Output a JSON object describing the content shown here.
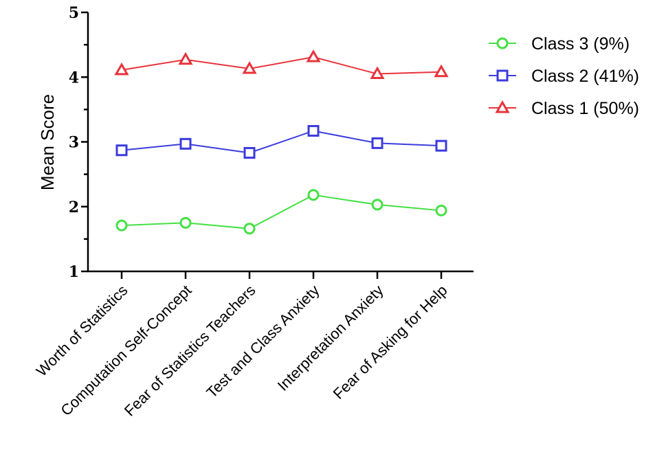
{
  "chart_data": {
    "type": "line",
    "categories": [
      "Worth of Statistics",
      "Computation Self-Concept",
      "Fear of Statistics Teachers",
      "Test and Class Anxiety",
      "Interpretation Anxiety",
      "Fear of Asking for Help"
    ],
    "ylabel": "Mean Score",
    "ylim": [
      1,
      5
    ],
    "yticks": [
      "1",
      "2",
      "3",
      "4",
      "5"
    ],
    "grid": false,
    "legend_position": "top-right",
    "series": [
      {
        "name": "Class 3 (9%)",
        "color": "#44e044",
        "marker": "circle",
        "values": [
          1.71,
          1.75,
          1.66,
          2.18,
          2.03,
          1.94
        ]
      },
      {
        "name": "Class 2 (41%)",
        "color": "#3b3bdd",
        "marker": "square",
        "values": [
          2.87,
          2.97,
          2.83,
          3.17,
          2.98,
          2.94
        ]
      },
      {
        "name": "Class 1 (50%)",
        "color": "#e8333a",
        "marker": "triangle",
        "values": [
          4.11,
          4.27,
          4.13,
          4.31,
          4.05,
          4.08
        ]
      }
    ]
  }
}
